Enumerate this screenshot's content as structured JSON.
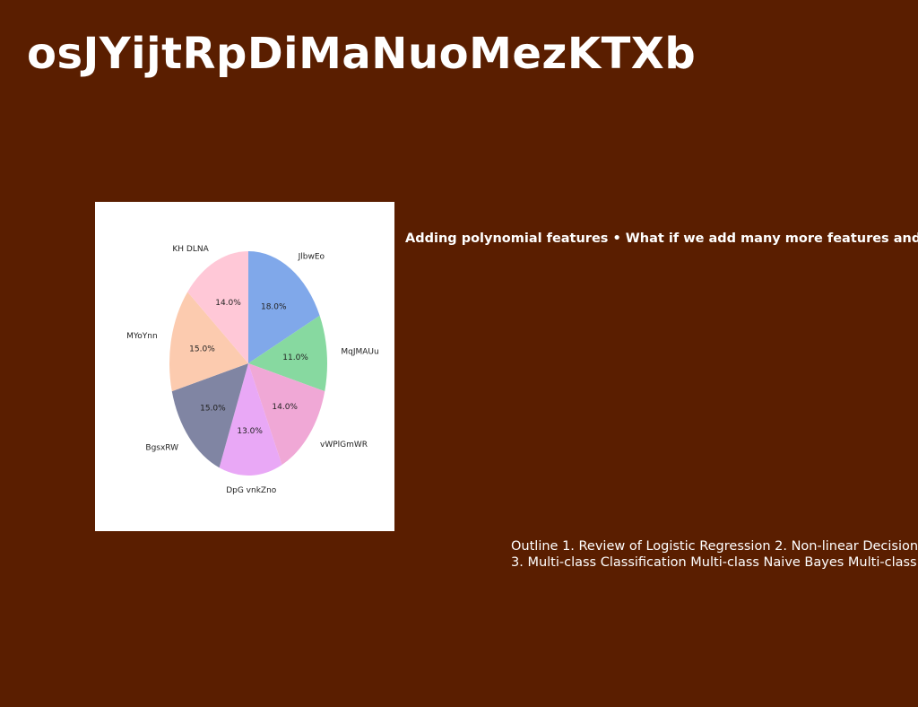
{
  "slide": {
    "title": "osJYijtRpDiMaNuoMezKTXb",
    "bullet_text": "Adding polynomial features • What if we add many more features and",
    "outline_line1": "Outline 1. Review of Logistic Regression 2. Non-linear Decision",
    "outline_line2": "3. Multi-class Classification Multi-class Naive Bayes Multi-class"
  },
  "chart_data": {
    "type": "pie",
    "start_angle_deg": 90,
    "direction": "clockwise",
    "slices": [
      {
        "label": "JlbwEo",
        "value": 18.0,
        "pct_label": "18.0%",
        "color": "#80a8ea"
      },
      {
        "label": "MqJMAUu",
        "value": 11.0,
        "pct_label": "11.0%",
        "color": "#87d9a0"
      },
      {
        "label": "vWPlGmWR",
        "value": 14.0,
        "pct_label": "14.0%",
        "color": "#f0a8d6"
      },
      {
        "label": "DpG vnkZno",
        "value": 13.0,
        "pct_label": "13.0%",
        "color": "#e9a8f6"
      },
      {
        "label": "BgsxRW",
        "value": 15.0,
        "pct_label": "15.0%",
        "color": "#8085a3"
      },
      {
        "label": "MYoYnn",
        "value": 15.0,
        "pct_label": "15.0%",
        "color": "#fccbaf"
      },
      {
        "label": "KH DLNA",
        "value": 14.0,
        "pct_label": "14.0%",
        "color": "#ffc8d7"
      }
    ]
  }
}
